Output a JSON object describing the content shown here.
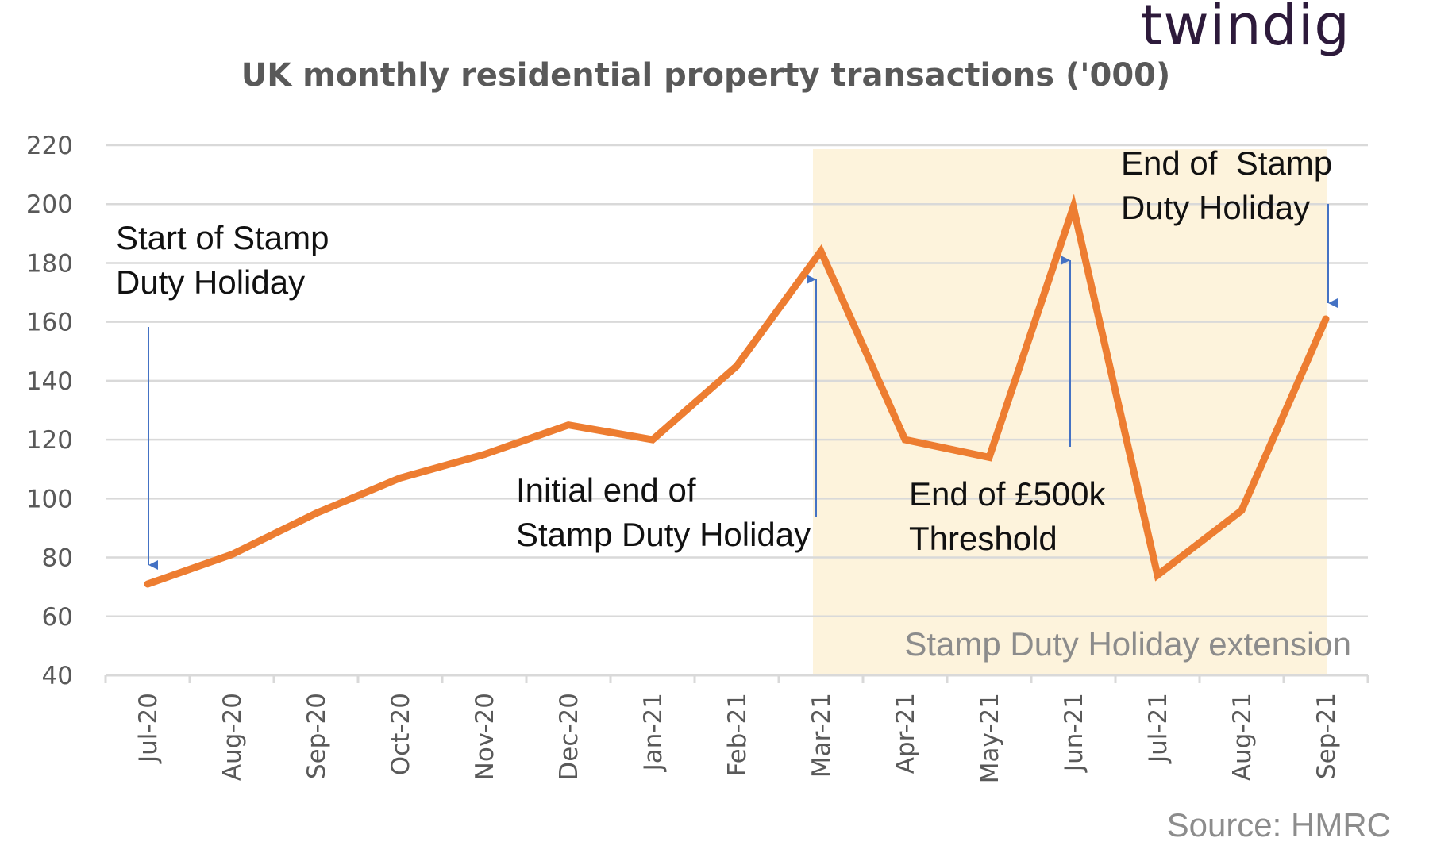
{
  "brand": "twindig",
  "source": "Source: HMRC",
  "chart_data": {
    "type": "line",
    "title": "UK monthly residential property transactions ('000)",
    "categories": [
      "Jul-20",
      "Aug-20",
      "Sep-20",
      "Oct-20",
      "Nov-20",
      "Dec-20",
      "Jan-21",
      "Feb-21",
      "Mar-21",
      "Apr-21",
      "May-21",
      "Jun-21",
      "Jul-21",
      "Aug-21",
      "Sep-21"
    ],
    "series": [
      {
        "values": [
          71,
          81,
          95,
          107,
          115,
          125,
          120,
          145,
          184,
          120,
          114,
          199,
          74,
          96,
          161
        ]
      }
    ],
    "ylim": [
      40,
      220
    ],
    "yticks": [
      40,
      60,
      80,
      100,
      120,
      140,
      160,
      180,
      200,
      220
    ],
    "grid": true,
    "line_color": "#ed7d31",
    "arrow_color": "#4472c4",
    "highlight": {
      "start": "Mar-21",
      "end": "Sep-21",
      "color": "#fdf3dc",
      "label": "Stamp Duty Holiday extension"
    },
    "annotations": [
      {
        "lines": [
          "Start of Stamp",
          "Duty Holiday"
        ],
        "at": "Jul-20",
        "arrow": "down"
      },
      {
        "lines": [
          "Initial end of",
          "Stamp Duty Holiday"
        ],
        "at": "Mar-21",
        "arrow": "up"
      },
      {
        "lines": [
          "End of £500k",
          "Threshold"
        ],
        "at": "Jun-21",
        "arrow": "up"
      },
      {
        "lines": [
          "End of  Stamp",
          "Duty Holiday"
        ],
        "at": "Sep-21",
        "arrow": "down"
      }
    ]
  }
}
